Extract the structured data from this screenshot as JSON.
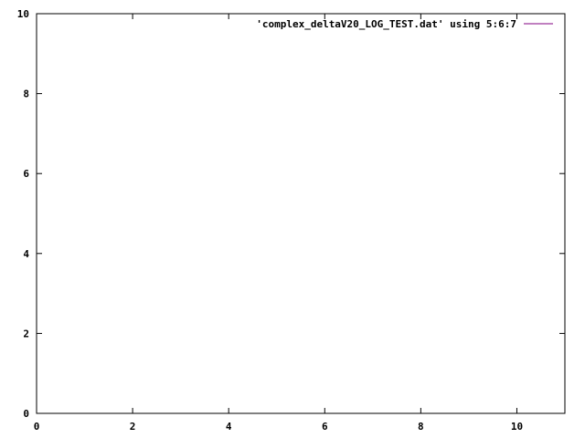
{
  "chart_data": {
    "type": "line",
    "title": "",
    "xlabel": "",
    "ylabel": "",
    "xlim": [
      0,
      11
    ],
    "ylim": [
      0,
      10
    ],
    "xticks": [
      "0",
      "2",
      "4",
      "6",
      "8",
      "10"
    ],
    "yticks": [
      "0",
      "2",
      "4",
      "6",
      "8",
      "10"
    ],
    "grid": false,
    "legend_position": "top-right",
    "series": [
      {
        "name": "'complex_deltaV20_LOG_TEST.dat' using 5:6:7",
        "color": "#800080",
        "x": [],
        "y": []
      }
    ]
  }
}
